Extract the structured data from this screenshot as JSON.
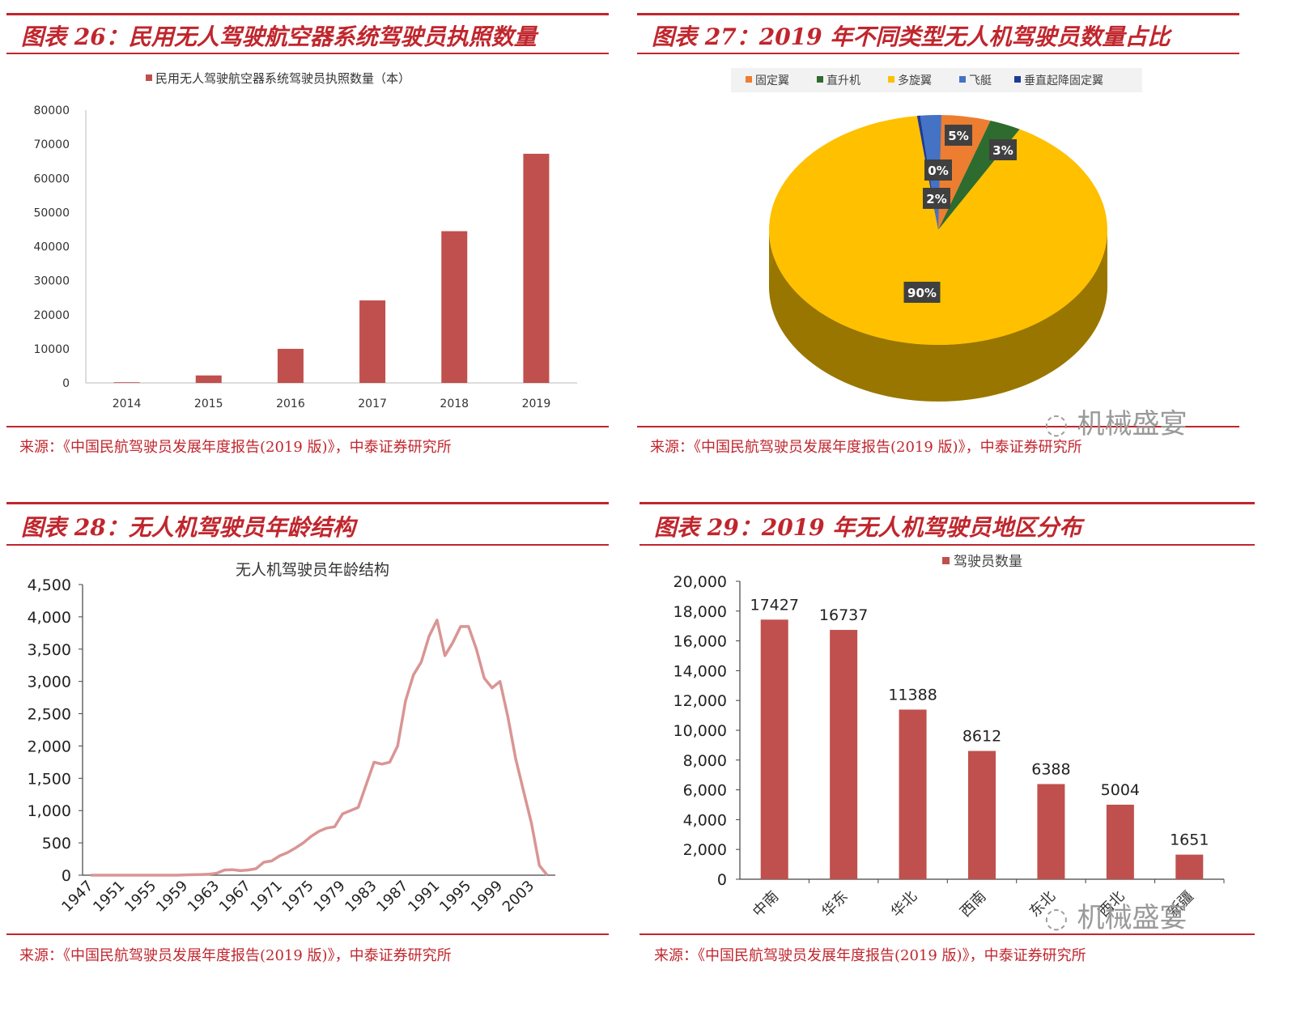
{
  "panels": [
    {
      "title": "图表 26：民用无人驾驶航空器系统驾驶员执照数量",
      "source": "来源：《中国民航驾驶员发展年度报告(2019 版)》，中泰证券研究所"
    },
    {
      "title": "图表 27：2019 年不同类型无人机驾驶员数量占比",
      "source": "来源：《中国民航驾驶员发展年度报告(2019 版)》，中泰证券研究所"
    },
    {
      "title": "图表 28：无人机驾驶员年龄结构",
      "source": "来源：《中国民航驾驶员发展年度报告(2019 版)》，中泰证券研究所"
    },
    {
      "title": "图表 29：2019 年无人机驾驶员地区分布",
      "source": "来源：《中国民航驾驶员发展年度报告(2019 版)》，中泰证券研究所"
    }
  ],
  "watermark": "机械盛宴",
  "colors": {
    "accent": "#c0262d",
    "bar": "#c0504d",
    "line": "#d99594",
    "pie_yellow": "#ffc000",
    "pie_orange": "#ed7d31",
    "pie_green": "#2e6b2e",
    "pie_blue": "#4472c4",
    "pie_navy": "#1f3a93"
  },
  "chart_data": [
    {
      "type": "bar",
      "legend": "民用无人驾驶航空器系统驾驶员执照数量（本）",
      "categories": [
        "2014",
        "2015",
        "2016",
        "2017",
        "2018",
        "2019"
      ],
      "values": [
        200,
        2200,
        10000,
        24200,
        44500,
        67200
      ],
      "ylim": [
        0,
        80000
      ],
      "yticks": [
        "0",
        "10000",
        "20000",
        "30000",
        "40000",
        "50000",
        "60000",
        "70000",
        "80000"
      ],
      "legend_position": "top"
    },
    {
      "type": "pie",
      "legend": [
        "固定翼",
        "直升机",
        "多旋翼",
        "飞艇",
        "垂直起降固定翼"
      ],
      "values": [
        5,
        3,
        90,
        2,
        0
      ],
      "labels": [
        "5%",
        "3%",
        "90%",
        "2%",
        "0%"
      ],
      "legend_position": "top"
    },
    {
      "type": "line",
      "title": "无人机驾驶员年龄结构",
      "x": [
        1947,
        1948,
        1949,
        1950,
        1951,
        1952,
        1953,
        1954,
        1955,
        1956,
        1957,
        1958,
        1959,
        1960,
        1961,
        1962,
        1963,
        1964,
        1965,
        1966,
        1967,
        1968,
        1969,
        1970,
        1971,
        1972,
        1973,
        1974,
        1975,
        1976,
        1977,
        1978,
        1979,
        1980,
        1981,
        1982,
        1983,
        1984,
        1985,
        1986,
        1987,
        1988,
        1989,
        1990,
        1991,
        1992,
        1993,
        1994,
        1995,
        1996,
        1997,
        1998,
        1999,
        2000,
        2001,
        2002,
        2003,
        2004,
        2005
      ],
      "y": [
        0,
        0,
        0,
        0,
        0,
        0,
        0,
        0,
        0,
        0,
        0,
        0,
        5,
        8,
        10,
        15,
        30,
        80,
        85,
        70,
        80,
        100,
        200,
        220,
        300,
        350,
        420,
        500,
        600,
        680,
        730,
        750,
        950,
        1000,
        1050,
        1400,
        1750,
        1720,
        1750,
        2000,
        2700,
        3100,
        3300,
        3700,
        3950,
        3400,
        3600,
        3850,
        3850,
        3500,
        3050,
        2900,
        3000,
        2450,
        1800,
        1300,
        800,
        150,
        0
      ],
      "ylim": [
        0,
        4500
      ],
      "yticks": [
        "0",
        "500",
        "1,000",
        "1,500",
        "2,000",
        "2,500",
        "3,000",
        "3,500",
        "4,000",
        "4,500"
      ],
      "xticks": [
        "1947",
        "1951",
        "1955",
        "1959",
        "1963",
        "1967",
        "1971",
        "1975",
        "1979",
        "1983",
        "1987",
        "1991",
        "1995",
        "1999",
        "2003"
      ],
      "grid": false
    },
    {
      "type": "bar",
      "legend": "驾驶员数量",
      "categories": [
        "中南",
        "华东",
        "华北",
        "西南",
        "东北",
        "西北",
        "新疆"
      ],
      "values": [
        17427,
        16737,
        11388,
        8612,
        6388,
        5004,
        1651
      ],
      "labels": [
        "17427",
        "16737",
        "11388",
        "8612",
        "6388",
        "5004",
        "1651"
      ],
      "ylim": [
        0,
        20000
      ],
      "yticks": [
        "0",
        "2,000",
        "4,000",
        "6,000",
        "8,000",
        "10,000",
        "12,000",
        "14,000",
        "16,000",
        "18,000",
        "20,000"
      ],
      "legend_position": "top"
    }
  ]
}
